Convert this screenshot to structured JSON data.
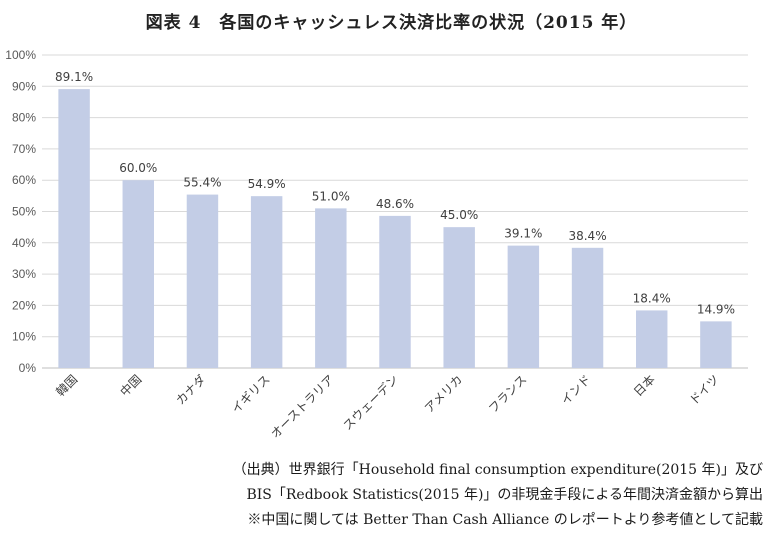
{
  "chart_data": {
    "type": "bar",
    "title": "図表 4　各国のキャッシュレス決済比率の状況（2015 年）",
    "categories": [
      "韓国",
      "中国",
      "カナダ",
      "イギリス",
      "オーストラリア",
      "スウェーデン",
      "アメリカ",
      "フランス",
      "インド",
      "日本",
      "ドイツ"
    ],
    "values": [
      89.1,
      60.0,
      55.4,
      54.9,
      51.0,
      48.6,
      45.0,
      39.1,
      38.4,
      18.4,
      14.9
    ],
    "data_labels": [
      "89.1%",
      "60.0%",
      "55.4%",
      "54.9%",
      "51.0%",
      "48.6%",
      "45.0%",
      "39.1%",
      "38.4%",
      "18.4%",
      "14.9%"
    ],
    "yticks": [
      "0%",
      "10%",
      "20%",
      "30%",
      "40%",
      "50%",
      "60%",
      "70%",
      "80%",
      "90%",
      "100%"
    ],
    "ylim": [
      0,
      100
    ],
    "xlabel": "",
    "ylabel": "",
    "grid": true,
    "bar_color": "#c3cde6",
    "grid_color": "#d9d9d9"
  },
  "notes": [
    "（出典）世界銀行「Household final consumption expenditure(2015 年)」及び",
    "BIS「Redbook Statistics(2015 年)」の非現金手段による年間決済金額から算出",
    "※中国に関しては Better Than Cash Alliance のレポートより参考値として記載"
  ]
}
